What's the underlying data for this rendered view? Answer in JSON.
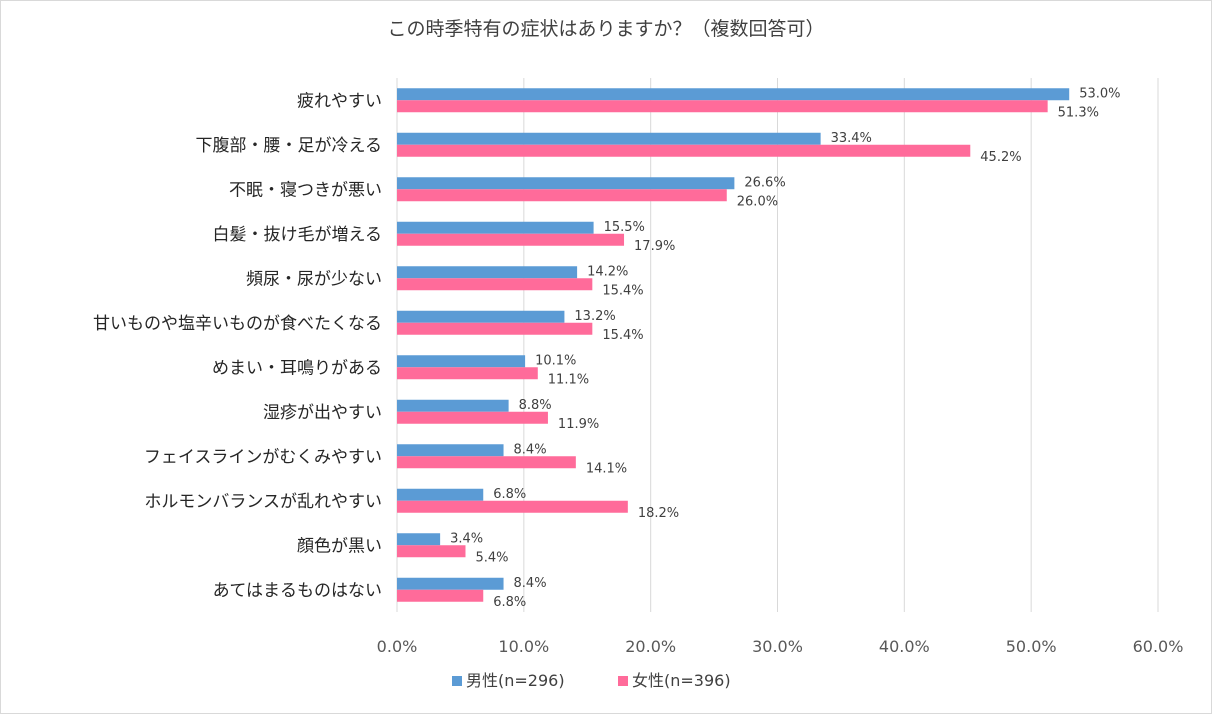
{
  "chart_data": {
    "type": "bar",
    "orientation": "horizontal",
    "title": "この時季特有の症状はありますか？（複数回答可）",
    "categories": [
      "疲れやすい",
      "下腹部・腰・足が冷える",
      "不眠・寝つきが悪い",
      "白髪・抜け毛が増える",
      "頻尿・尿が少ない",
      "甘いものや塩辛いものが食べたくなる",
      "めまい・耳鳴りがある",
      "湿疹が出やすい",
      "フェイスラインがむくみやすい",
      "ホルモンバランスが乱れやすい",
      "顔色が黒い",
      "あてはまるものはない"
    ],
    "series": [
      {
        "name": "男性(n=296)",
        "color": "#5b9bd5",
        "values": [
          53.0,
          33.4,
          26.6,
          15.5,
          14.2,
          13.2,
          10.1,
          8.8,
          8.4,
          6.8,
          3.4,
          8.4
        ],
        "labels": [
          "53.0%",
          "33.4%",
          "26.6%",
          "15.5%",
          "14.2%",
          "13.2%",
          "10.1%",
          "8.8%",
          "8.4%",
          "6.8%",
          "3.4%",
          "8.4%"
        ]
      },
      {
        "name": "女性(n=396)",
        "color": "#ff6b9a",
        "values": [
          51.3,
          45.2,
          26.0,
          17.9,
          15.4,
          15.4,
          11.1,
          11.9,
          14.1,
          18.2,
          5.4,
          6.8
        ],
        "labels": [
          "51.3%",
          "45.2%",
          "26.0%",
          "17.9%",
          "15.4%",
          "15.4%",
          "11.1%",
          "11.9%",
          "14.1%",
          "18.2%",
          "5.4%",
          "6.8%"
        ]
      }
    ],
    "xlim": [
      0,
      60
    ],
    "xticks": [
      "0.0%",
      "10.0%",
      "20.0%",
      "30.0%",
      "40.0%",
      "50.0%",
      "60.0%"
    ],
    "xtick_values": [
      0,
      10,
      20,
      30,
      40,
      50,
      60
    ],
    "grid": true,
    "legend_position": "bottom"
  }
}
